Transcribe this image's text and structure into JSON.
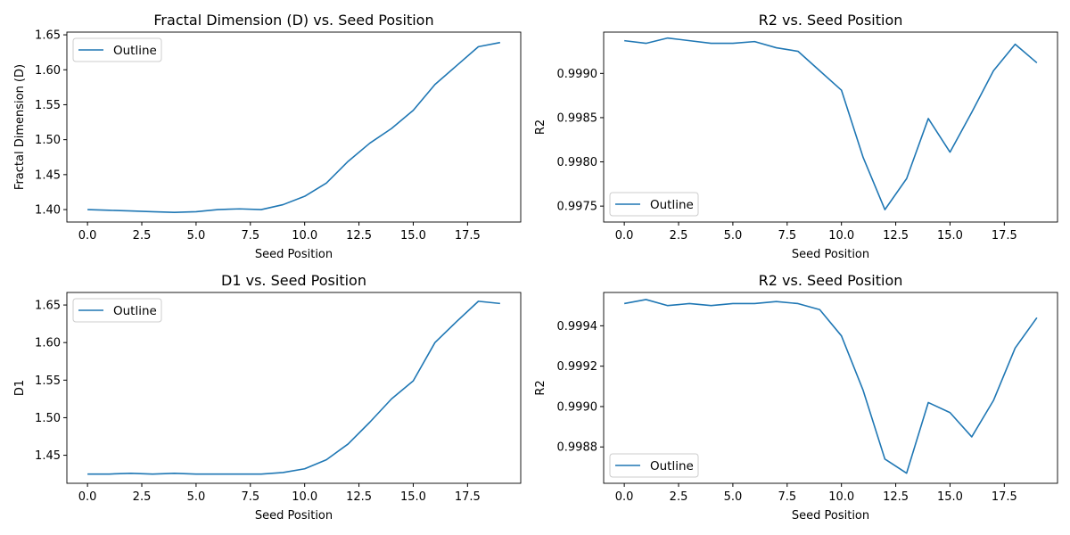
{
  "style": {
    "line_color": "#1f77b4",
    "axis_color": "#000000",
    "background": "#ffffff"
  },
  "chart_data": [
    {
      "type": "line",
      "title": "Fractal Dimension (D) vs. Seed Position",
      "xlabel": "Seed Position",
      "ylabel": "Fractal Dimension (D)",
      "xlim": [
        -0.95,
        19.95
      ],
      "ylim": [
        1.3822,
        1.6539
      ],
      "xticks": [
        0.0,
        2.5,
        5.0,
        7.5,
        10.0,
        12.5,
        15.0,
        17.5
      ],
      "xtick_labels": [
        "0.0",
        "2.5",
        "5.0",
        "7.5",
        "10.0",
        "12.5",
        "15.0",
        "17.5"
      ],
      "yticks": [
        1.4,
        1.45,
        1.5,
        1.55,
        1.6,
        1.65
      ],
      "ytick_labels": [
        "1.40",
        "1.45",
        "1.50",
        "1.55",
        "1.60",
        "1.65"
      ],
      "grid": false,
      "legend": "upper left",
      "series": [
        {
          "name": "Outline",
          "x": [
            0,
            1,
            2,
            3,
            4,
            5,
            6,
            7,
            8,
            9,
            10,
            11,
            12,
            13,
            14,
            15,
            16,
            17,
            18,
            19
          ],
          "y": [
            1.4,
            1.399,
            1.398,
            1.397,
            1.396,
            1.397,
            1.4,
            1.401,
            1.4,
            1.407,
            1.419,
            1.438,
            1.469,
            1.495,
            1.516,
            1.542,
            1.579,
            1.606,
            1.633,
            1.639
          ]
        }
      ]
    },
    {
      "type": "line",
      "title": "R2 vs. Seed Position",
      "xlabel": "Seed Position",
      "ylabel": "R2",
      "xlim": [
        -0.95,
        19.95
      ],
      "ylim": [
        0.99732,
        0.999467
      ],
      "xticks": [
        0.0,
        2.5,
        5.0,
        7.5,
        10.0,
        12.5,
        15.0,
        17.5
      ],
      "xtick_labels": [
        "0.0",
        "2.5",
        "5.0",
        "7.5",
        "10.0",
        "12.5",
        "15.0",
        "17.5"
      ],
      "yticks": [
        0.9975,
        0.998,
        0.9985,
        0.999
      ],
      "ytick_labels": [
        "0.9975",
        "0.9980",
        "0.9985",
        "0.9990"
      ],
      "grid": false,
      "legend": "lower left",
      "series": [
        {
          "name": "Outline",
          "x": [
            0,
            1,
            2,
            3,
            4,
            5,
            6,
            7,
            8,
            9,
            10,
            11,
            12,
            13,
            14,
            15,
            16,
            17,
            18,
            19
          ],
          "y": [
            0.99937,
            0.99934,
            0.9994,
            0.99937,
            0.99934,
            0.99934,
            0.99936,
            0.99929,
            0.99925,
            0.99903,
            0.99881,
            0.99805,
            0.99746,
            0.99781,
            0.99849,
            0.99811,
            0.99856,
            0.99903,
            0.99933,
            0.99912
          ]
        }
      ]
    },
    {
      "type": "line",
      "title": "D1 vs. Seed Position",
      "xlabel": "Seed Position",
      "ylabel": "D1",
      "xlim": [
        -0.95,
        19.95
      ],
      "ylim": [
        1.4127,
        1.6667
      ],
      "xticks": [
        0.0,
        2.5,
        5.0,
        7.5,
        10.0,
        12.5,
        15.0,
        17.5
      ],
      "xtick_labels": [
        "0.0",
        "2.5",
        "5.0",
        "7.5",
        "10.0",
        "12.5",
        "15.0",
        "17.5"
      ],
      "yticks": [
        1.45,
        1.5,
        1.55,
        1.6,
        1.65
      ],
      "ytick_labels": [
        "1.45",
        "1.50",
        "1.55",
        "1.60",
        "1.65"
      ],
      "grid": false,
      "legend": "upper left",
      "series": [
        {
          "name": "Outline",
          "x": [
            0,
            1,
            2,
            3,
            4,
            5,
            6,
            7,
            8,
            9,
            10,
            11,
            12,
            13,
            14,
            15,
            16,
            17,
            18,
            19
          ],
          "y": [
            1.425,
            1.425,
            1.426,
            1.425,
            1.426,
            1.425,
            1.425,
            1.425,
            1.425,
            1.427,
            1.432,
            1.444,
            1.465,
            1.494,
            1.525,
            1.549,
            1.6,
            1.628,
            1.655,
            1.652
          ]
        }
      ]
    },
    {
      "type": "line",
      "title": "R2 vs. Seed Position",
      "xlabel": "Seed Position",
      "ylabel": "R2",
      "xlim": [
        -0.95,
        19.95
      ],
      "ylim": [
        0.99862,
        0.999565
      ],
      "xticks": [
        0.0,
        2.5,
        5.0,
        7.5,
        10.0,
        12.5,
        15.0,
        17.5
      ],
      "xtick_labels": [
        "0.0",
        "2.5",
        "5.0",
        "7.5",
        "10.0",
        "12.5",
        "15.0",
        "17.5"
      ],
      "yticks": [
        0.9988,
        0.999,
        0.9992,
        0.9994
      ],
      "ytick_labels": [
        "0.9988",
        "0.9990",
        "0.9992",
        "0.9994"
      ],
      "grid": false,
      "legend": "lower left",
      "series": [
        {
          "name": "Outline",
          "x": [
            0,
            1,
            2,
            3,
            4,
            5,
            6,
            7,
            8,
            9,
            10,
            11,
            12,
            13,
            14,
            15,
            16,
            17,
            18,
            19
          ],
          "y": [
            0.99951,
            0.99953,
            0.9995,
            0.99951,
            0.9995,
            0.99951,
            0.99951,
            0.99952,
            0.99951,
            0.99948,
            0.99935,
            0.99908,
            0.99874,
            0.99867,
            0.99902,
            0.99897,
            0.99885,
            0.99903,
            0.99929,
            0.99944
          ]
        }
      ]
    }
  ]
}
